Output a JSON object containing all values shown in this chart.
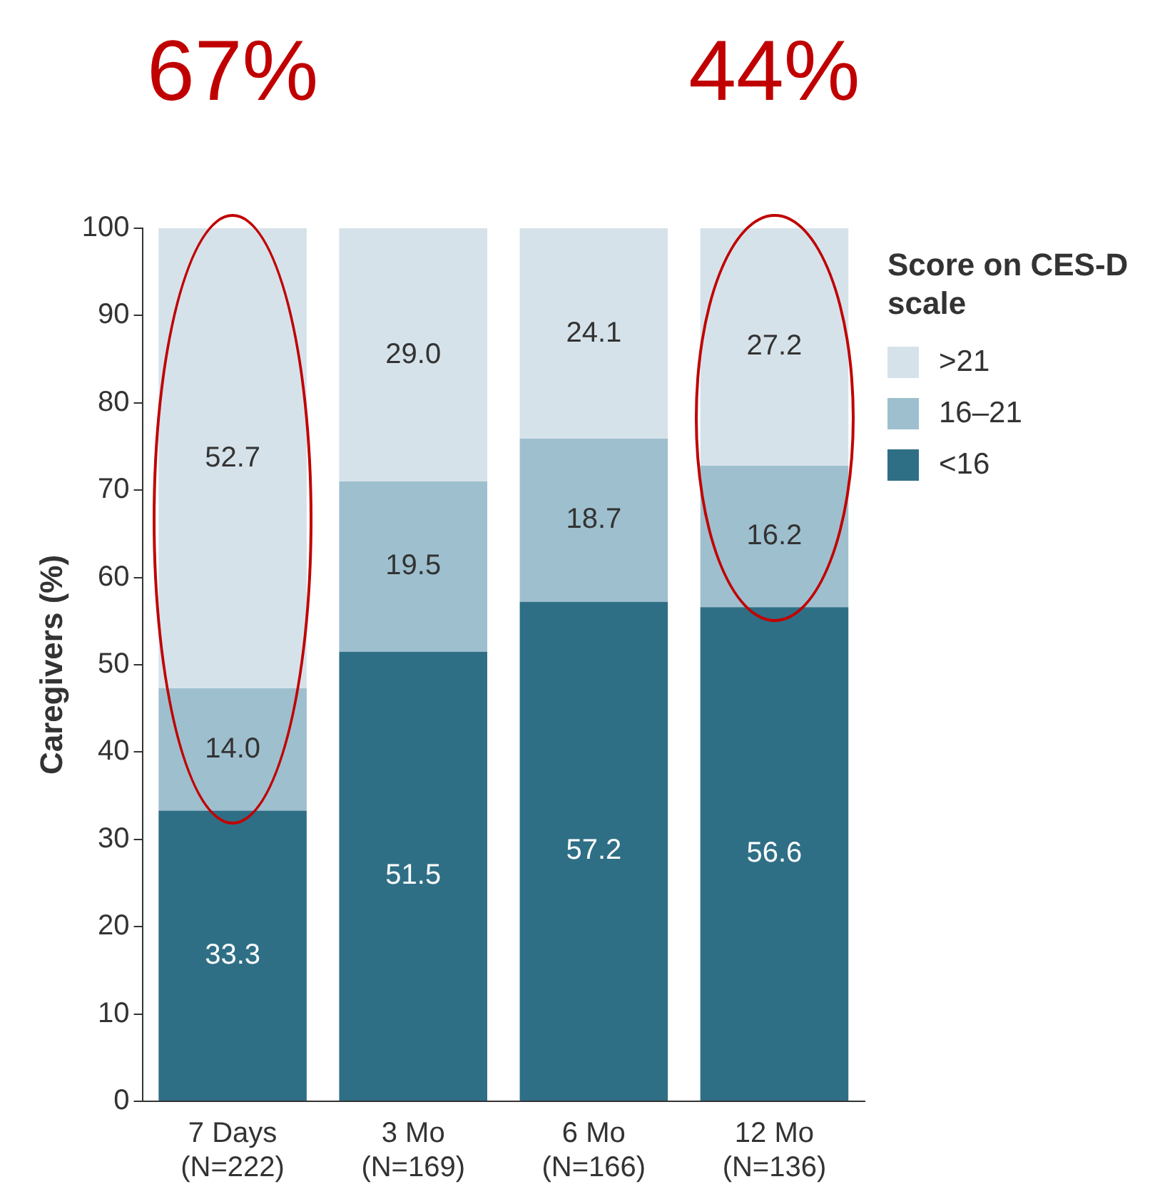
{
  "chart_data": {
    "type": "bar",
    "stacked": true,
    "ylabel": "Caregivers (%)",
    "legend_title": "Score on CES-D scale",
    "legend": "top right",
    "grid": false,
    "categories": [
      "7 Days\n(N=222)",
      "3 Mo\n(N=169)",
      "6 Mo\n(N=166)",
      "12 Mo\n(N=136)"
    ],
    "ylim": [
      0,
      100
    ],
    "yticks": [
      0,
      10,
      20,
      30,
      40,
      50,
      60,
      70,
      80,
      90,
      100
    ],
    "series": [
      {
        "name": "<16",
        "color": "#2f6f86",
        "values": [
          33.3,
          51.5,
          57.2,
          56.6
        ],
        "value_labels": [
          "33.3",
          "51.5",
          "57.2",
          "56.6"
        ]
      },
      {
        "name": "16–21",
        "color": "#9ebfce",
        "values": [
          14.0,
          19.5,
          18.7,
          16.2
        ],
        "value_labels": [
          "14.0",
          "19.5",
          "18.7",
          "16.2"
        ]
      },
      {
        "name": ">21",
        "color": "#d6e2ea",
        "values": [
          52.7,
          29.0,
          24.1,
          27.2
        ],
        "value_labels": [
          "52.7",
          "29.0",
          "24.1",
          "27.2"
        ]
      }
    ],
    "annotations": [
      "67%",
      "44%"
    ]
  }
}
